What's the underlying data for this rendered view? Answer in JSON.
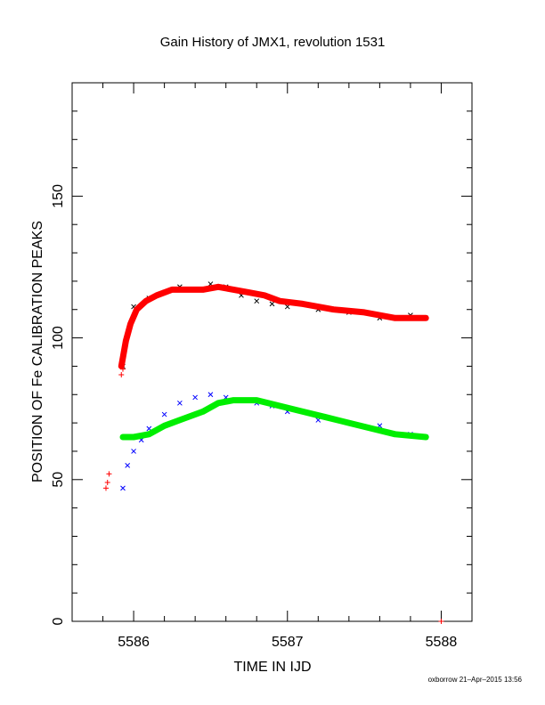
{
  "chart_data": {
    "type": "scatter",
    "title": "Gain History of JMX1, revolution 1531",
    "xlabel": "TIME IN IJD",
    "ylabel": "POSITION OF Fe CALIBRATION PEAKS",
    "xlim": [
      5585.6,
      5588.2
    ],
    "ylim": [
      0,
      190
    ],
    "x_ticks": [
      5586,
      5587,
      5588
    ],
    "y_ticks": [
      0,
      50,
      100,
      150
    ],
    "grid": false,
    "legend": "none",
    "series": [
      {
        "color": "#000000",
        "marker": "x",
        "x": [
          5585.93,
          5586.0,
          5586.1,
          5586.2,
          5586.3,
          5586.4,
          5586.5,
          5586.6,
          5586.7,
          5586.8,
          5586.9,
          5587.0,
          5587.2,
          5587.4,
          5587.6,
          5587.8,
          5587.9
        ],
        "y": [
          90,
          111,
          114,
          116,
          118,
          117,
          119,
          118,
          115,
          113,
          112,
          111,
          110,
          109,
          107,
          108,
          107
        ]
      },
      {
        "color": "#ff0000",
        "marker": "line",
        "x": [
          5585.92,
          5585.95,
          5585.98,
          5586.02,
          5586.08,
          5586.15,
          5586.25,
          5586.35,
          5586.45,
          5586.55,
          5586.65,
          5586.75,
          5586.85,
          5586.95,
          5587.1,
          5587.3,
          5587.5,
          5587.7,
          5587.9
        ],
        "y": [
          90,
          99,
          105,
          110,
          113,
          115,
          117,
          117,
          117,
          118,
          117,
          116,
          115,
          113,
          112,
          110,
          109,
          107,
          107
        ]
      },
      {
        "color": "#ff0000",
        "marker": "+",
        "x": [
          5585.82,
          5585.83,
          5585.84,
          5585.92,
          5585.93,
          5588.0
        ],
        "y": [
          47,
          49,
          52,
          87,
          89,
          0
        ]
      },
      {
        "color": "#0000ff",
        "marker": "x",
        "x": [
          5585.93,
          5585.96,
          5586.0,
          5586.05,
          5586.1,
          5586.2,
          5586.3,
          5586.4,
          5586.5,
          5586.6,
          5586.7,
          5586.8,
          5586.9,
          5587.0,
          5587.2,
          5587.4,
          5587.6,
          5587.8,
          5587.9
        ],
        "y": [
          47,
          55,
          60,
          64,
          68,
          73,
          77,
          79,
          80,
          79,
          78,
          77,
          76,
          74,
          71,
          70,
          69,
          66,
          65
        ]
      },
      {
        "color": "#00ee00",
        "marker": "line",
        "x": [
          5585.93,
          5586.0,
          5586.1,
          5586.2,
          5586.3,
          5586.45,
          5586.55,
          5586.65,
          5586.8,
          5586.95,
          5587.1,
          5587.25,
          5587.4,
          5587.55,
          5587.7,
          5587.9
        ],
        "y": [
          65,
          65,
          66,
          69,
          71,
          74,
          77,
          78,
          78,
          76,
          74,
          72,
          70,
          68,
          66,
          65
        ]
      }
    ]
  },
  "footer": "oxborrow 21–Apr–2015 13:56"
}
